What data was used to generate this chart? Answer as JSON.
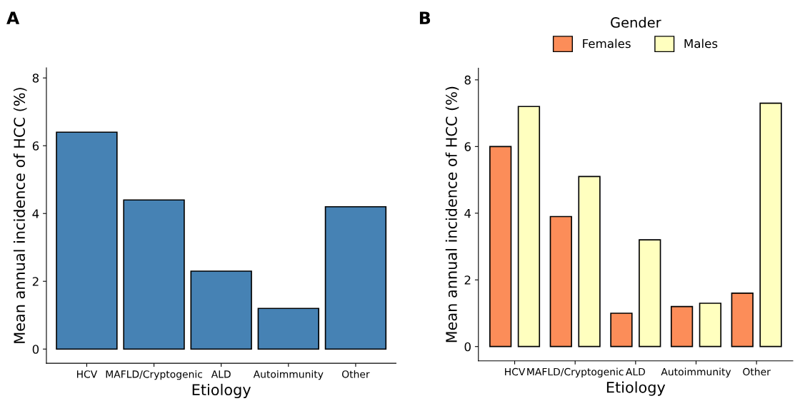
{
  "chart_data": [
    {
      "type": "bar",
      "categories": [
        "HCV",
        "MAFLD/Cryptogenic",
        "ALD",
        "Autoimmunity",
        "Other"
      ],
      "values": [
        6.4,
        4.4,
        2.3,
        1.2,
        4.2
      ],
      "color": "#4682b4",
      "xlabel": "Etiology",
      "ylabel": "Mean annual incidence of HCC (%)",
      "ylim": [
        -0.42,
        8.3
      ],
      "yticks": [
        0,
        2,
        4,
        6,
        8
      ],
      "annotations": [
        "A"
      ],
      "grid": false,
      "legend": false
    },
    {
      "type": "bar",
      "categories": [
        "HCV",
        "MAFLD/Cryptogenic",
        "ALD",
        "Autoimmunity",
        "Other"
      ],
      "series": [
        {
          "name": "Females",
          "color": "#fc8d59",
          "values": [
            6.0,
            3.9,
            1.0,
            1.2,
            1.6
          ]
        },
        {
          "name": "Males",
          "color": "#ffffbf",
          "values": [
            7.2,
            5.1,
            3.2,
            1.3,
            7.3
          ]
        }
      ],
      "xlabel": "Etiology",
      "ylabel": "Mean annual incidence of HCC (%)",
      "ylim": [
        -0.43,
        8.35
      ],
      "yticks": [
        0,
        2,
        4,
        6,
        8
      ],
      "annotations": [
        "B"
      ],
      "legend": "top",
      "legend_title": "Gender",
      "grid": false
    }
  ]
}
